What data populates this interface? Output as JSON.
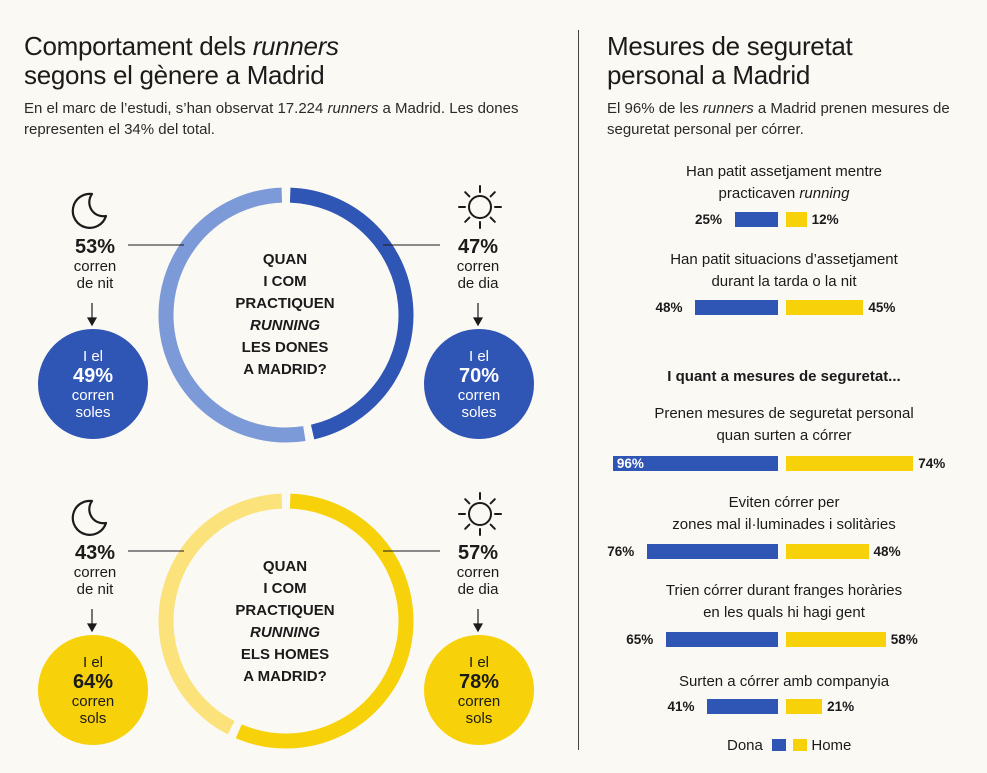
{
  "left": {
    "title_pre": "Comportament dels ",
    "title_em": "runners",
    "title_post": "segons el gènere a Madrid",
    "subtitle_pre": "En el marc de l’estudi, s’han observat 17.224 ",
    "subtitle_em": "runners",
    "subtitle_post": " a Madrid. Les dones representen el 34% del total."
  },
  "right": {
    "title_1": "Mesures de seguretat",
    "title_2": "personal a Madrid",
    "subtitle_pre": "El 96% de les ",
    "subtitle_em": "runners",
    "subtitle_post": " a Madrid prenen mesures de seguretat personal per córrer.",
    "section_heading": "I quant a mesures de seguretat...",
    "legend": {
      "dona": "Dona",
      "home": "Home"
    }
  },
  "colors": {
    "women_night": "#7d9ad8",
    "women_day": "#2f55b5",
    "men_night": "#fbe27a",
    "men_day": "#f7d10a"
  },
  "rings": [
    {
      "id": "women",
      "center_lines": [
        "QUAN",
        "I COM",
        "PRACTIQUEN",
        "RUNNING",
        "LES DONES",
        "A MADRID?"
      ],
      "night": {
        "pct": "53%",
        "line1": "corren",
        "line2": "de nit"
      },
      "day": {
        "pct": "47%",
        "line1": "corren",
        "line2": "de dia"
      },
      "bubble_left": {
        "pre": "I el",
        "pct": "49%",
        "line1": "corren",
        "line2": "soles"
      },
      "bubble_right": {
        "pre": "I el",
        "pct": "70%",
        "line1": "corren",
        "line2": "soles"
      }
    },
    {
      "id": "men",
      "center_lines": [
        "QUAN",
        "I COM",
        "PRACTIQUEN",
        "RUNNING",
        "ELS HOMES",
        "A MADRID?"
      ],
      "night": {
        "pct": "43%",
        "line1": "corren",
        "line2": "de nit"
      },
      "day": {
        "pct": "57%",
        "line1": "corren",
        "line2": "de dia"
      },
      "bubble_left": {
        "pre": "I el",
        "pct": "64%",
        "line1": "corren",
        "line2": "sols"
      },
      "bubble_right": {
        "pre": "I el",
        "pct": "78%",
        "line1": "corren",
        "line2": "sols"
      }
    }
  ],
  "chart_data": [
    {
      "type": "pie",
      "categories": [
        "corren de nit",
        "corren de dia"
      ],
      "values": [
        53,
        47
      ]
    },
    {
      "type": "pie",
      "categories": [
        "corren de nit",
        "corren de dia"
      ],
      "values": [
        43,
        57
      ]
    },
    {
      "type": "bar",
      "categories": [
        "Han patit assetjament mentre practicaven running",
        "Han patit situacions d’assetjament durant la tarda o la nit",
        "Prenen mesures de seguretat personal quan surten a córrer",
        "Eviten córrer per zones mal il·luminades i solitàries",
        "Trien córrer durant franges horàries en les quals hi hagi gent",
        "Surten a córrer amb companyia"
      ],
      "series": [
        {
          "name": "Dona",
          "values": [
            25,
            48,
            96,
            76,
            65,
            41
          ]
        },
        {
          "name": "Home",
          "values": [
            12,
            45,
            74,
            48,
            58,
            21
          ]
        }
      ],
      "labels": {
        "dona": [
          "25%",
          "48%",
          "96%",
          "76%",
          "65%",
          "41%"
        ],
        "home": [
          "12%",
          "45%",
          "74%",
          "48%",
          "58%",
          "21%"
        ]
      },
      "questions": [
        {
          "line1": "Han patit assetjament mentre",
          "line2_pre": "practicaven ",
          "line2_em": "running"
        },
        {
          "line1": "Han patit situacions d’assetjament",
          "line2_pre": "durant la tarda o la nit",
          "line2_em": ""
        },
        {
          "line1": "Prenen mesures de seguretat personal",
          "line2_pre": "quan surten a córrer",
          "line2_em": ""
        },
        {
          "line1": "Eviten córrer per",
          "line2_pre": "zones mal il·luminades i solitàries",
          "line2_em": ""
        },
        {
          "line1": "Trien córrer durant franges horàries",
          "line2_pre": "en les quals hi hagi gent",
          "line2_em": ""
        },
        {
          "line1": "Surten a córrer amb companyia",
          "line2_pre": "",
          "line2_em": ""
        }
      ]
    }
  ]
}
